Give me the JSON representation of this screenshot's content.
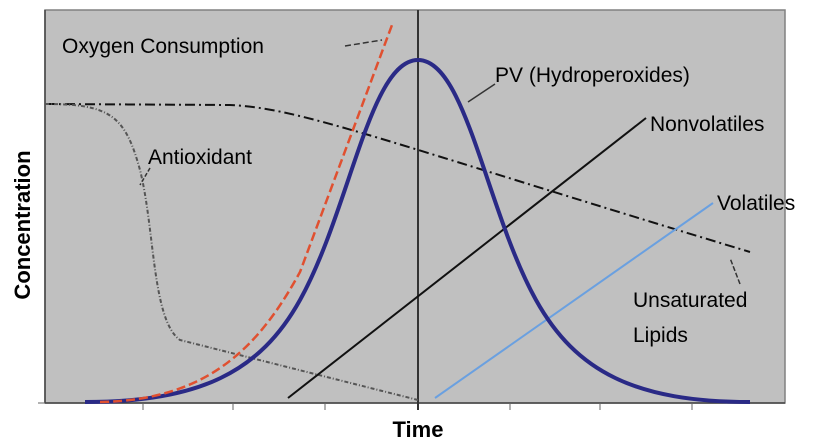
{
  "axes": {
    "x_label": "Time",
    "y_label": "Concentration"
  },
  "curve_labels": {
    "oxygen": "Oxygen Consumption",
    "pv": "PV (Hydroperoxides)",
    "nonvolatiles": "Nonvolatiles",
    "antioxidant": "Antioxidant",
    "volatiles": "Volatiles",
    "lipids_line1": "Unsaturated",
    "lipids_line2": "Lipids"
  }
}
